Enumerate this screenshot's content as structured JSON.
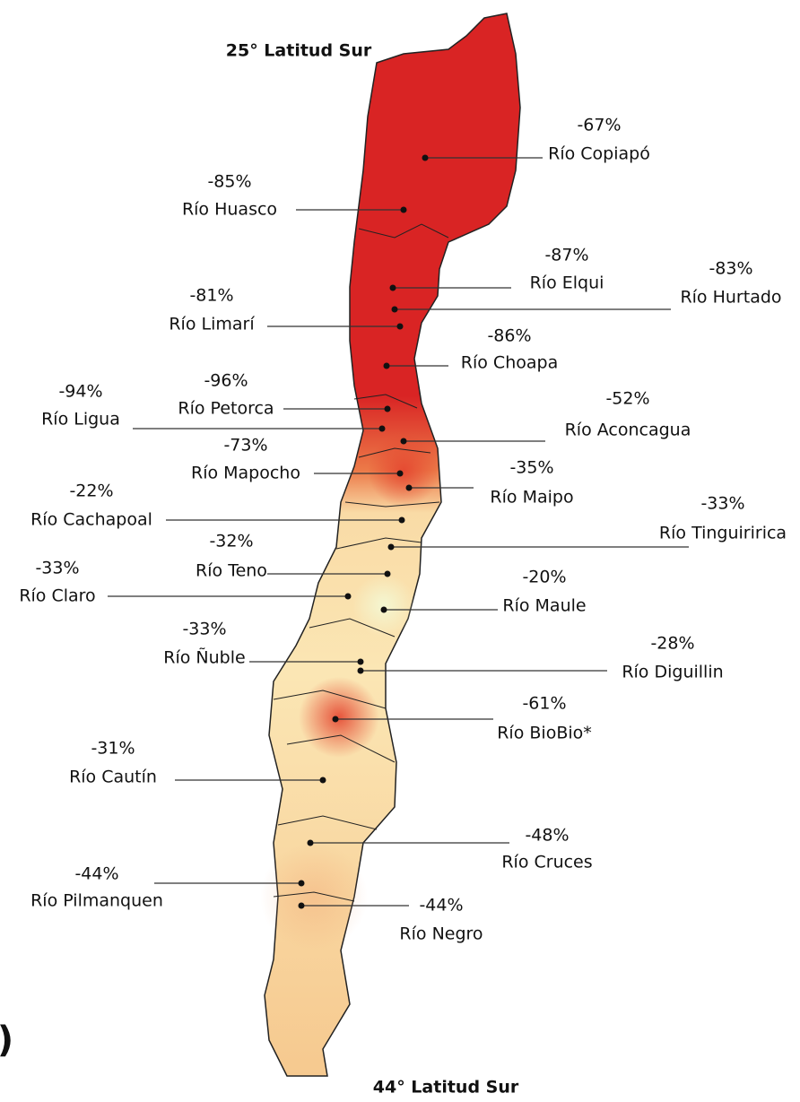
{
  "map": {
    "north_label": "25° Latitud Sur",
    "south_label": "44° Latitud Sur",
    "edge_fragment": ")",
    "rivers": [
      {
        "name": "Río Copiapó",
        "change": "-67%"
      },
      {
        "name": "Río Huasco",
        "change": "-85%"
      },
      {
        "name": "Río Elqui",
        "change": "-87%"
      },
      {
        "name": "Río Hurtado",
        "change": "-83%"
      },
      {
        "name": "Río Limarí",
        "change": "-81%"
      },
      {
        "name": "Río Choapa",
        "change": "-86%"
      },
      {
        "name": "Río Petorca",
        "change": "-96%"
      },
      {
        "name": "Río Ligua",
        "change": "-94%"
      },
      {
        "name": "Río Aconcagua",
        "change": "-52%"
      },
      {
        "name": "Río Mapocho",
        "change": "-73%"
      },
      {
        "name": "Río Maipo",
        "change": "-35%"
      },
      {
        "name": "Río Cachapoal",
        "change": "-22%"
      },
      {
        "name": "Río Tinguiririca",
        "change": "-33%"
      },
      {
        "name": "Río Teno",
        "change": "-32%"
      },
      {
        "name": "Río Claro",
        "change": "-33%"
      },
      {
        "name": "Río Maule",
        "change": "-20%"
      },
      {
        "name": "Río Ñuble",
        "change": "-33%"
      },
      {
        "name": "Río Diguillin",
        "change": "-28%"
      },
      {
        "name": "Río BioBio*",
        "change": "-61%"
      },
      {
        "name": "Río Cautín",
        "change": "-31%"
      },
      {
        "name": "Río Cruces",
        "change": "-48%"
      },
      {
        "name": "Río Pilmanquen",
        "change": "-44%"
      },
      {
        "name": "Río Negro",
        "change": "-44%"
      }
    ]
  }
}
